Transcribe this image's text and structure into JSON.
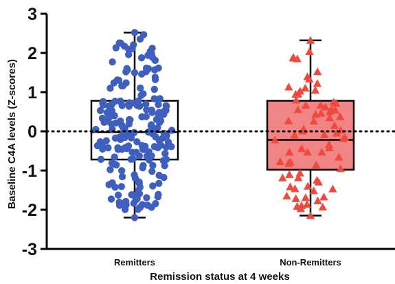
{
  "chart_data": {
    "type": "box-scatter",
    "title": "",
    "xlabel": "Remission status at 4 weeks",
    "ylabel": "Baseline C4A levels (Z-scores)",
    "ylim": [
      -3,
      3
    ],
    "yticks": [
      -3,
      -2,
      -1,
      0,
      1,
      2,
      3
    ],
    "reference_line": {
      "y": 0,
      "style": "dotted"
    },
    "groups": [
      {
        "name": "Remitters",
        "color": "#3f5fbf",
        "box_fill": "none",
        "marker": "circle",
        "whisker_min": -2.2,
        "q1": -0.72,
        "median": -0.02,
        "q3": 0.78,
        "whisker_max": 2.52,
        "n_points": 220
      },
      {
        "name": "Non-Remitters",
        "color": "#f04a3f",
        "box_fill": "#f07878",
        "marker": "triangle",
        "whisker_min": -2.15,
        "q1": -0.98,
        "median": -0.22,
        "q3": 0.78,
        "whisker_max": 2.32,
        "n_points": 75
      }
    ]
  }
}
